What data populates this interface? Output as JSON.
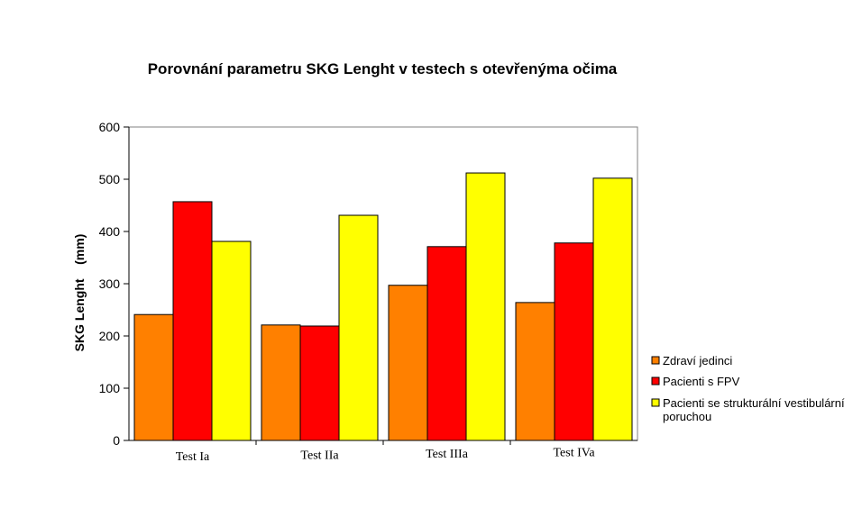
{
  "chart_data": {
    "type": "bar",
    "title": "Porovnání parametru SKG Lenght v testech s otevřenýma očima",
    "ylabel": "SKG Lenght    (mm)",
    "xlabel": "",
    "categories": [
      "Test Ia",
      "Test IIa",
      "Test IIIa",
      "Test IVa"
    ],
    "ylim": [
      0,
      600
    ],
    "yticks": [
      0,
      100,
      200,
      300,
      400,
      500,
      600
    ],
    "grid": false,
    "legend_position": "right",
    "series": [
      {
        "name": "Zdraví jedinci",
        "color": "#FF8000",
        "values": [
          241,
          221,
          297,
          264
        ]
      },
      {
        "name": "Pacienti s FPV",
        "color": "#FF0000",
        "values": [
          457,
          219,
          371,
          378
        ]
      },
      {
        "name": "Pacienti se strukturální vestibulární poruchou",
        "color": "#FFFF00",
        "values": [
          381,
          431,
          512,
          502
        ]
      }
    ]
  }
}
